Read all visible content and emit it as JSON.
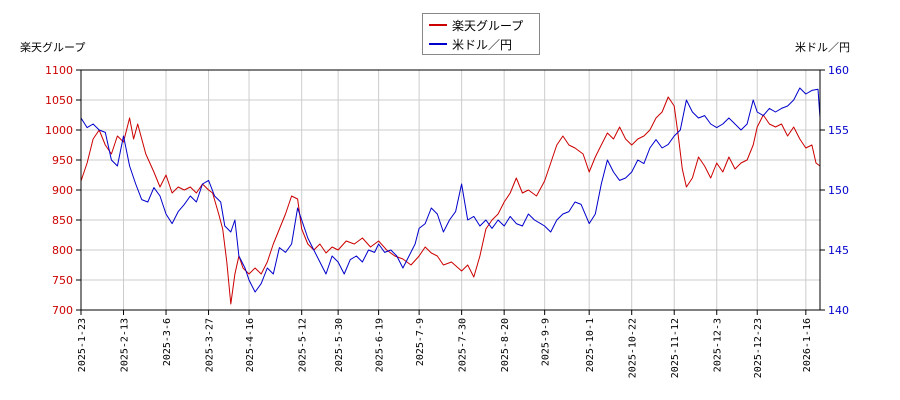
{
  "chart_data": {
    "type": "line",
    "legend_position": "top-center",
    "grid": true,
    "ylabel_left": "楽天グループ",
    "ylabel_right": "米ドル／円",
    "y_left": {
      "min": 700,
      "max": 1100,
      "ticks": [
        700,
        750,
        800,
        850,
        900,
        950,
        1000,
        1050,
        1100
      ]
    },
    "y_right": {
      "min": 140,
      "max": 160,
      "ticks": [
        140,
        145,
        150,
        155,
        160
      ]
    },
    "x_range": [
      "2025-01-23",
      "2026-01-23"
    ],
    "x_ticks": [
      "2025-1-23",
      "2025-2-13",
      "2025-3-6",
      "2025-3-27",
      "2025-4-16",
      "2025-5-12",
      "2025-5-30",
      "2025-6-19",
      "2025-7-9",
      "2025-7-30",
      "2025-8-20",
      "2025-9-9",
      "2025-10-1",
      "2025-10-22",
      "2025-11-12",
      "2025-12-3",
      "2025-12-23",
      "2026-1-16"
    ],
    "series": [
      {
        "name": "楽天グループ",
        "axis": "left",
        "color": "#cc0000",
        "points": [
          [
            "2025-01-23",
            915
          ],
          [
            "2025-01-26",
            945
          ],
          [
            "2025-01-29",
            985
          ],
          [
            "2025-02-01",
            1000
          ],
          [
            "2025-02-04",
            975
          ],
          [
            "2025-02-07",
            960
          ],
          [
            "2025-02-10",
            990
          ],
          [
            "2025-02-13",
            980
          ],
          [
            "2025-02-16",
            1020
          ],
          [
            "2025-02-18",
            985
          ],
          [
            "2025-02-20",
            1010
          ],
          [
            "2025-02-24",
            960
          ],
          [
            "2025-02-28",
            930
          ],
          [
            "2025-03-03",
            905
          ],
          [
            "2025-03-06",
            925
          ],
          [
            "2025-03-09",
            895
          ],
          [
            "2025-03-12",
            905
          ],
          [
            "2025-03-15",
            900
          ],
          [
            "2025-03-18",
            905
          ],
          [
            "2025-03-21",
            895
          ],
          [
            "2025-03-24",
            910
          ],
          [
            "2025-03-27",
            900
          ],
          [
            "2025-03-29",
            895
          ],
          [
            "2025-04-01",
            860
          ],
          [
            "2025-04-03",
            835
          ],
          [
            "2025-04-05",
            780
          ],
          [
            "2025-04-07",
            710
          ],
          [
            "2025-04-09",
            760
          ],
          [
            "2025-04-11",
            790
          ],
          [
            "2025-04-13",
            770
          ],
          [
            "2025-04-16",
            760
          ],
          [
            "2025-04-19",
            770
          ],
          [
            "2025-04-22",
            760
          ],
          [
            "2025-04-25",
            780
          ],
          [
            "2025-04-28",
            810
          ],
          [
            "2025-05-01",
            835
          ],
          [
            "2025-05-04",
            860
          ],
          [
            "2025-05-07",
            890
          ],
          [
            "2025-05-10",
            885
          ],
          [
            "2025-05-12",
            835
          ],
          [
            "2025-05-15",
            810
          ],
          [
            "2025-05-18",
            800
          ],
          [
            "2025-05-21",
            810
          ],
          [
            "2025-05-24",
            795
          ],
          [
            "2025-05-27",
            805
          ],
          [
            "2025-05-30",
            800
          ],
          [
            "2025-06-03",
            815
          ],
          [
            "2025-06-07",
            810
          ],
          [
            "2025-06-11",
            820
          ],
          [
            "2025-06-15",
            805
          ],
          [
            "2025-06-19",
            815
          ],
          [
            "2025-06-23",
            800
          ],
          [
            "2025-06-27",
            790
          ],
          [
            "2025-07-01",
            785
          ],
          [
            "2025-07-05",
            775
          ],
          [
            "2025-07-09",
            790
          ],
          [
            "2025-07-12",
            805
          ],
          [
            "2025-07-15",
            795
          ],
          [
            "2025-07-18",
            790
          ],
          [
            "2025-07-21",
            775
          ],
          [
            "2025-07-25",
            780
          ],
          [
            "2025-07-30",
            765
          ],
          [
            "2025-08-02",
            775
          ],
          [
            "2025-08-05",
            755
          ],
          [
            "2025-08-08",
            790
          ],
          [
            "2025-08-11",
            835
          ],
          [
            "2025-08-14",
            850
          ],
          [
            "2025-08-17",
            860
          ],
          [
            "2025-08-20",
            880
          ],
          [
            "2025-08-23",
            895
          ],
          [
            "2025-08-26",
            920
          ],
          [
            "2025-08-29",
            895
          ],
          [
            "2025-09-01",
            900
          ],
          [
            "2025-09-05",
            890
          ],
          [
            "2025-09-09",
            915
          ],
          [
            "2025-09-12",
            945
          ],
          [
            "2025-09-15",
            975
          ],
          [
            "2025-09-18",
            990
          ],
          [
            "2025-09-21",
            975
          ],
          [
            "2025-09-24",
            970
          ],
          [
            "2025-09-28",
            960
          ],
          [
            "2025-10-01",
            930
          ],
          [
            "2025-10-04",
            955
          ],
          [
            "2025-10-07",
            975
          ],
          [
            "2025-10-10",
            995
          ],
          [
            "2025-10-13",
            985
          ],
          [
            "2025-10-16",
            1005
          ],
          [
            "2025-10-19",
            985
          ],
          [
            "2025-10-22",
            975
          ],
          [
            "2025-10-25",
            985
          ],
          [
            "2025-10-28",
            990
          ],
          [
            "2025-10-31",
            1000
          ],
          [
            "2025-11-03",
            1020
          ],
          [
            "2025-11-06",
            1030
          ],
          [
            "2025-11-09",
            1055
          ],
          [
            "2025-11-12",
            1040
          ],
          [
            "2025-11-14",
            990
          ],
          [
            "2025-11-16",
            935
          ],
          [
            "2025-11-18",
            905
          ],
          [
            "2025-11-21",
            920
          ],
          [
            "2025-11-24",
            955
          ],
          [
            "2025-11-27",
            940
          ],
          [
            "2025-11-30",
            920
          ],
          [
            "2025-12-03",
            945
          ],
          [
            "2025-12-06",
            930
          ],
          [
            "2025-12-09",
            955
          ],
          [
            "2025-12-12",
            935
          ],
          [
            "2025-12-15",
            945
          ],
          [
            "2025-12-18",
            950
          ],
          [
            "2025-12-21",
            975
          ],
          [
            "2025-12-23",
            1005
          ],
          [
            "2025-12-26",
            1025
          ],
          [
            "2025-12-29",
            1010
          ],
          [
            "2026-01-01",
            1005
          ],
          [
            "2026-01-04",
            1010
          ],
          [
            "2026-01-07",
            990
          ],
          [
            "2026-01-10",
            1005
          ],
          [
            "2026-01-13",
            985
          ],
          [
            "2026-01-16",
            970
          ],
          [
            "2026-01-19",
            975
          ],
          [
            "2026-01-21",
            945
          ],
          [
            "2026-01-23",
            940
          ]
        ]
      },
      {
        "name": "米ドル／円",
        "axis": "right",
        "color": "#0000cc",
        "points": [
          [
            "2025-01-23",
            156.0
          ],
          [
            "2025-01-26",
            155.2
          ],
          [
            "2025-01-29",
            155.5
          ],
          [
            "2025-02-01",
            155.0
          ],
          [
            "2025-02-04",
            154.8
          ],
          [
            "2025-02-07",
            152.5
          ],
          [
            "2025-02-10",
            152.0
          ],
          [
            "2025-02-13",
            154.5
          ],
          [
            "2025-02-16",
            152.0
          ],
          [
            "2025-02-19",
            150.5
          ],
          [
            "2025-02-22",
            149.2
          ],
          [
            "2025-02-25",
            149.0
          ],
          [
            "2025-02-28",
            150.2
          ],
          [
            "2025-03-03",
            149.5
          ],
          [
            "2025-03-06",
            148.0
          ],
          [
            "2025-03-09",
            147.2
          ],
          [
            "2025-03-12",
            148.2
          ],
          [
            "2025-03-15",
            148.8
          ],
          [
            "2025-03-18",
            149.5
          ],
          [
            "2025-03-21",
            149.0
          ],
          [
            "2025-03-24",
            150.5
          ],
          [
            "2025-03-27",
            150.8
          ],
          [
            "2025-03-30",
            149.5
          ],
          [
            "2025-04-02",
            149.0
          ],
          [
            "2025-04-04",
            147.0
          ],
          [
            "2025-04-07",
            146.5
          ],
          [
            "2025-04-09",
            147.5
          ],
          [
            "2025-04-11",
            144.5
          ],
          [
            "2025-04-14",
            143.5
          ],
          [
            "2025-04-16",
            142.5
          ],
          [
            "2025-04-19",
            141.5
          ],
          [
            "2025-04-22",
            142.2
          ],
          [
            "2025-04-25",
            143.5
          ],
          [
            "2025-04-28",
            143.0
          ],
          [
            "2025-05-01",
            145.2
          ],
          [
            "2025-05-04",
            144.8
          ],
          [
            "2025-05-07",
            145.5
          ],
          [
            "2025-05-10",
            148.5
          ],
          [
            "2025-05-12",
            147.5
          ],
          [
            "2025-05-15",
            146.0
          ],
          [
            "2025-05-18",
            145.0
          ],
          [
            "2025-05-21",
            144.0
          ],
          [
            "2025-05-24",
            143.0
          ],
          [
            "2025-05-27",
            144.5
          ],
          [
            "2025-05-30",
            144.0
          ],
          [
            "2025-06-02",
            143.0
          ],
          [
            "2025-06-05",
            144.2
          ],
          [
            "2025-06-08",
            144.5
          ],
          [
            "2025-06-11",
            144.0
          ],
          [
            "2025-06-14",
            145.0
          ],
          [
            "2025-06-17",
            144.8
          ],
          [
            "2025-06-19",
            145.5
          ],
          [
            "2025-06-22",
            144.8
          ],
          [
            "2025-06-25",
            145.0
          ],
          [
            "2025-06-28",
            144.5
          ],
          [
            "2025-07-01",
            143.5
          ],
          [
            "2025-07-04",
            144.5
          ],
          [
            "2025-07-07",
            145.5
          ],
          [
            "2025-07-09",
            146.8
          ],
          [
            "2025-07-12",
            147.2
          ],
          [
            "2025-07-15",
            148.5
          ],
          [
            "2025-07-18",
            148.0
          ],
          [
            "2025-07-21",
            146.5
          ],
          [
            "2025-07-24",
            147.5
          ],
          [
            "2025-07-27",
            148.2
          ],
          [
            "2025-07-30",
            150.5
          ],
          [
            "2025-08-02",
            147.5
          ],
          [
            "2025-08-05",
            147.8
          ],
          [
            "2025-08-08",
            147.0
          ],
          [
            "2025-08-11",
            147.5
          ],
          [
            "2025-08-14",
            146.8
          ],
          [
            "2025-08-17",
            147.5
          ],
          [
            "2025-08-20",
            147.0
          ],
          [
            "2025-08-23",
            147.8
          ],
          [
            "2025-08-26",
            147.2
          ],
          [
            "2025-08-29",
            147.0
          ],
          [
            "2025-09-01",
            148.0
          ],
          [
            "2025-09-04",
            147.5
          ],
          [
            "2025-09-07",
            147.2
          ],
          [
            "2025-09-09",
            147.0
          ],
          [
            "2025-09-12",
            146.5
          ],
          [
            "2025-09-15",
            147.5
          ],
          [
            "2025-09-18",
            148.0
          ],
          [
            "2025-09-21",
            148.2
          ],
          [
            "2025-09-24",
            149.0
          ],
          [
            "2025-09-27",
            148.8
          ],
          [
            "2025-10-01",
            147.2
          ],
          [
            "2025-10-04",
            148.0
          ],
          [
            "2025-10-07",
            150.5
          ],
          [
            "2025-10-10",
            152.5
          ],
          [
            "2025-10-13",
            151.5
          ],
          [
            "2025-10-16",
            150.8
          ],
          [
            "2025-10-19",
            151.0
          ],
          [
            "2025-10-22",
            151.5
          ],
          [
            "2025-10-25",
            152.5
          ],
          [
            "2025-10-28",
            152.2
          ],
          [
            "2025-10-31",
            153.5
          ],
          [
            "2025-11-03",
            154.2
          ],
          [
            "2025-11-06",
            153.5
          ],
          [
            "2025-11-09",
            153.8
          ],
          [
            "2025-11-12",
            154.5
          ],
          [
            "2025-11-15",
            155.0
          ],
          [
            "2025-11-18",
            157.5
          ],
          [
            "2025-11-21",
            156.5
          ],
          [
            "2025-11-24",
            156.0
          ],
          [
            "2025-11-27",
            156.2
          ],
          [
            "2025-11-30",
            155.5
          ],
          [
            "2025-12-03",
            155.2
          ],
          [
            "2025-12-06",
            155.5
          ],
          [
            "2025-12-09",
            156.0
          ],
          [
            "2025-12-12",
            155.5
          ],
          [
            "2025-12-15",
            155.0
          ],
          [
            "2025-12-18",
            155.5
          ],
          [
            "2025-12-21",
            157.5
          ],
          [
            "2025-12-23",
            156.5
          ],
          [
            "2025-12-26",
            156.2
          ],
          [
            "2025-12-29",
            156.8
          ],
          [
            "2026-01-01",
            156.5
          ],
          [
            "2026-01-04",
            156.8
          ],
          [
            "2026-01-07",
            157.0
          ],
          [
            "2026-01-10",
            157.5
          ],
          [
            "2026-01-13",
            158.5
          ],
          [
            "2026-01-16",
            158.0
          ],
          [
            "2026-01-19",
            158.3
          ],
          [
            "2026-01-22",
            158.4
          ],
          [
            "2026-01-23",
            156.0
          ]
        ]
      }
    ]
  }
}
